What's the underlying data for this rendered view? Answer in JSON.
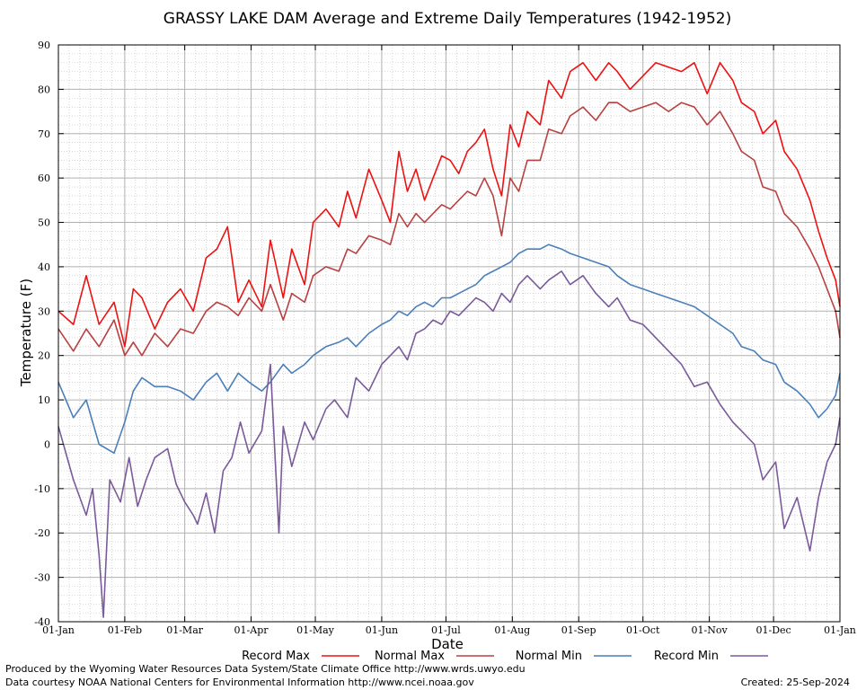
{
  "chart_data": {
    "type": "line",
    "title": "GRASSY LAKE DAM Average and Extreme Daily Temperatures (1942-1952)",
    "xlabel": "Date",
    "ylabel": "Temperature (F)",
    "ylim": [
      -40,
      90
    ],
    "yticks": [
      "90",
      "80",
      "70",
      "60",
      "50",
      "40",
      "30",
      "20",
      "10",
      "0",
      "-10",
      "-20",
      "-30",
      "-40"
    ],
    "xlim": [
      1,
      366
    ],
    "xticks": [
      {
        "day": 1,
        "label": "01-Jan"
      },
      {
        "day": 32,
        "label": "01-Feb"
      },
      {
        "day": 60,
        "label": "01-Mar"
      },
      {
        "day": 91,
        "label": "01-Apr"
      },
      {
        "day": 121,
        "label": "01-May"
      },
      {
        "day": 152,
        "label": "01-Jun"
      },
      {
        "day": 182,
        "label": "01-Jul"
      },
      {
        "day": 213,
        "label": "01-Aug"
      },
      {
        "day": 244,
        "label": "01-Sep"
      },
      {
        "day": 274,
        "label": "01-Oct"
      },
      {
        "day": 305,
        "label": "01-Nov"
      },
      {
        "day": 335,
        "label": "01-Dec"
      },
      {
        "day": 366,
        "label": "01-Jan"
      }
    ],
    "grid": true,
    "legend_position": "bottom",
    "series": [
      {
        "name": "Record Max",
        "color": "#ee1111",
        "points": [
          [
            1,
            30
          ],
          [
            8,
            27
          ],
          [
            14,
            38
          ],
          [
            20,
            27
          ],
          [
            27,
            32
          ],
          [
            32,
            22
          ],
          [
            36,
            35
          ],
          [
            40,
            33
          ],
          [
            46,
            26
          ],
          [
            52,
            32
          ],
          [
            58,
            35
          ],
          [
            64,
            30
          ],
          [
            70,
            42
          ],
          [
            75,
            44
          ],
          [
            80,
            49
          ],
          [
            85,
            32
          ],
          [
            90,
            37
          ],
          [
            96,
            31
          ],
          [
            100,
            46
          ],
          [
            106,
            33
          ],
          [
            110,
            44
          ],
          [
            116,
            36
          ],
          [
            120,
            50
          ],
          [
            126,
            53
          ],
          [
            132,
            49
          ],
          [
            136,
            57
          ],
          [
            140,
            51
          ],
          [
            146,
            62
          ],
          [
            152,
            55
          ],
          [
            156,
            50
          ],
          [
            160,
            66
          ],
          [
            164,
            57
          ],
          [
            168,
            62
          ],
          [
            172,
            55
          ],
          [
            176,
            60
          ],
          [
            180,
            65
          ],
          [
            184,
            64
          ],
          [
            188,
            61
          ],
          [
            192,
            66
          ],
          [
            196,
            68
          ],
          [
            200,
            71
          ],
          [
            204,
            62
          ],
          [
            208,
            56
          ],
          [
            212,
            72
          ],
          [
            216,
            67
          ],
          [
            220,
            75
          ],
          [
            226,
            72
          ],
          [
            230,
            82
          ],
          [
            236,
            78
          ],
          [
            240,
            84
          ],
          [
            246,
            86
          ],
          [
            252,
            82
          ],
          [
            258,
            86
          ],
          [
            262,
            84
          ],
          [
            268,
            80
          ],
          [
            274,
            83
          ],
          [
            280,
            86
          ],
          [
            286,
            85
          ],
          [
            292,
            84
          ],
          [
            298,
            86
          ],
          [
            304,
            79
          ],
          [
            310,
            86
          ],
          [
            316,
            82
          ],
          [
            320,
            77
          ],
          [
            326,
            75
          ],
          [
            330,
            70
          ],
          [
            336,
            73
          ],
          [
            340,
            66
          ],
          [
            346,
            62
          ],
          [
            352,
            55
          ],
          [
            356,
            48
          ],
          [
            360,
            42
          ],
          [
            364,
            37
          ],
          [
            366,
            31
          ]
        ]
      },
      {
        "name": "Normal Max",
        "color": "#b84040",
        "points": [
          [
            1,
            26
          ],
          [
            8,
            21
          ],
          [
            14,
            26
          ],
          [
            20,
            22
          ],
          [
            27,
            28
          ],
          [
            32,
            20
          ],
          [
            36,
            23
          ],
          [
            40,
            20
          ],
          [
            46,
            25
          ],
          [
            52,
            22
          ],
          [
            58,
            26
          ],
          [
            64,
            25
          ],
          [
            70,
            30
          ],
          [
            75,
            32
          ],
          [
            80,
            31
          ],
          [
            85,
            29
          ],
          [
            90,
            33
          ],
          [
            96,
            30
          ],
          [
            100,
            36
          ],
          [
            106,
            28
          ],
          [
            110,
            34
          ],
          [
            116,
            32
          ],
          [
            120,
            38
          ],
          [
            126,
            40
          ],
          [
            132,
            39
          ],
          [
            136,
            44
          ],
          [
            140,
            43
          ],
          [
            146,
            47
          ],
          [
            152,
            46
          ],
          [
            156,
            45
          ],
          [
            160,
            52
          ],
          [
            164,
            49
          ],
          [
            168,
            52
          ],
          [
            172,
            50
          ],
          [
            176,
            52
          ],
          [
            180,
            54
          ],
          [
            184,
            53
          ],
          [
            188,
            55
          ],
          [
            192,
            57
          ],
          [
            196,
            56
          ],
          [
            200,
            60
          ],
          [
            204,
            56
          ],
          [
            208,
            47
          ],
          [
            212,
            60
          ],
          [
            216,
            57
          ],
          [
            220,
            64
          ],
          [
            226,
            64
          ],
          [
            230,
            71
          ],
          [
            236,
            70
          ],
          [
            240,
            74
          ],
          [
            246,
            76
          ],
          [
            252,
            73
          ],
          [
            258,
            77
          ],
          [
            262,
            77
          ],
          [
            268,
            75
          ],
          [
            274,
            76
          ],
          [
            280,
            77
          ],
          [
            286,
            75
          ],
          [
            292,
            77
          ],
          [
            298,
            76
          ],
          [
            304,
            72
          ],
          [
            310,
            75
          ],
          [
            316,
            70
          ],
          [
            320,
            66
          ],
          [
            326,
            64
          ],
          [
            330,
            58
          ],
          [
            336,
            57
          ],
          [
            340,
            52
          ],
          [
            346,
            49
          ],
          [
            352,
            44
          ],
          [
            356,
            40
          ],
          [
            360,
            35
          ],
          [
            364,
            30
          ],
          [
            366,
            24
          ]
        ]
      },
      {
        "name": "Normal Min",
        "color": "#4a7fba",
        "points": [
          [
            1,
            14
          ],
          [
            8,
            6
          ],
          [
            14,
            10
          ],
          [
            20,
            0
          ],
          [
            27,
            -2
          ],
          [
            32,
            5
          ],
          [
            36,
            12
          ],
          [
            40,
            15
          ],
          [
            46,
            13
          ],
          [
            52,
            13
          ],
          [
            58,
            12
          ],
          [
            64,
            10
          ],
          [
            70,
            14
          ],
          [
            75,
            16
          ],
          [
            80,
            12
          ],
          [
            85,
            16
          ],
          [
            90,
            14
          ],
          [
            96,
            12
          ],
          [
            100,
            14
          ],
          [
            106,
            18
          ],
          [
            110,
            16
          ],
          [
            116,
            18
          ],
          [
            120,
            20
          ],
          [
            126,
            22
          ],
          [
            132,
            23
          ],
          [
            136,
            24
          ],
          [
            140,
            22
          ],
          [
            146,
            25
          ],
          [
            152,
            27
          ],
          [
            156,
            28
          ],
          [
            160,
            30
          ],
          [
            164,
            29
          ],
          [
            168,
            31
          ],
          [
            172,
            32
          ],
          [
            176,
            31
          ],
          [
            180,
            33
          ],
          [
            184,
            33
          ],
          [
            188,
            34
          ],
          [
            192,
            35
          ],
          [
            196,
            36
          ],
          [
            200,
            38
          ],
          [
            204,
            39
          ],
          [
            208,
            40
          ],
          [
            212,
            41
          ],
          [
            216,
            43
          ],
          [
            220,
            44
          ],
          [
            226,
            44
          ],
          [
            230,
            45
          ],
          [
            236,
            44
          ],
          [
            240,
            43
          ],
          [
            246,
            42
          ],
          [
            252,
            41
          ],
          [
            258,
            40
          ],
          [
            262,
            38
          ],
          [
            268,
            36
          ],
          [
            274,
            35
          ],
          [
            280,
            34
          ],
          [
            286,
            33
          ],
          [
            292,
            32
          ],
          [
            298,
            31
          ],
          [
            304,
            29
          ],
          [
            310,
            27
          ],
          [
            316,
            25
          ],
          [
            320,
            22
          ],
          [
            326,
            21
          ],
          [
            330,
            19
          ],
          [
            336,
            18
          ],
          [
            340,
            14
          ],
          [
            346,
            12
          ],
          [
            352,
            9
          ],
          [
            356,
            6
          ],
          [
            360,
            8
          ],
          [
            364,
            11
          ],
          [
            366,
            16
          ]
        ]
      },
      {
        "name": "Record Min",
        "color": "#7a5a9a",
        "points": [
          [
            1,
            4
          ],
          [
            8,
            -8
          ],
          [
            14,
            -16
          ],
          [
            17,
            -10
          ],
          [
            20,
            -25
          ],
          [
            22,
            -39
          ],
          [
            25,
            -8
          ],
          [
            30,
            -13
          ],
          [
            34,
            -3
          ],
          [
            38,
            -14
          ],
          [
            42,
            -8
          ],
          [
            46,
            -3
          ],
          [
            52,
            -1
          ],
          [
            56,
            -9
          ],
          [
            60,
            -13
          ],
          [
            64,
            -16
          ],
          [
            66,
            -18
          ],
          [
            70,
            -11
          ],
          [
            74,
            -20
          ],
          [
            78,
            -6
          ],
          [
            82,
            -3
          ],
          [
            86,
            5
          ],
          [
            90,
            -2
          ],
          [
            96,
            3
          ],
          [
            100,
            18
          ],
          [
            104,
            -20
          ],
          [
            106,
            4
          ],
          [
            110,
            -5
          ],
          [
            116,
            5
          ],
          [
            120,
            1
          ],
          [
            126,
            8
          ],
          [
            130,
            10
          ],
          [
            136,
            6
          ],
          [
            140,
            15
          ],
          [
            146,
            12
          ],
          [
            152,
            18
          ],
          [
            156,
            20
          ],
          [
            160,
            22
          ],
          [
            164,
            19
          ],
          [
            168,
            25
          ],
          [
            172,
            26
          ],
          [
            176,
            28
          ],
          [
            180,
            27
          ],
          [
            184,
            30
          ],
          [
            188,
            29
          ],
          [
            192,
            31
          ],
          [
            196,
            33
          ],
          [
            200,
            32
          ],
          [
            204,
            30
          ],
          [
            208,
            34
          ],
          [
            212,
            32
          ],
          [
            216,
            36
          ],
          [
            220,
            38
          ],
          [
            226,
            35
          ],
          [
            230,
            37
          ],
          [
            236,
            39
          ],
          [
            240,
            36
          ],
          [
            246,
            38
          ],
          [
            252,
            34
          ],
          [
            258,
            31
          ],
          [
            262,
            33
          ],
          [
            268,
            28
          ],
          [
            274,
            27
          ],
          [
            280,
            24
          ],
          [
            286,
            21
          ],
          [
            292,
            18
          ],
          [
            298,
            13
          ],
          [
            304,
            14
          ],
          [
            310,
            9
          ],
          [
            316,
            5
          ],
          [
            320,
            3
          ],
          [
            326,
            0
          ],
          [
            330,
            -8
          ],
          [
            336,
            -4
          ],
          [
            340,
            -19
          ],
          [
            346,
            -12
          ],
          [
            352,
            -24
          ],
          [
            356,
            -12
          ],
          [
            360,
            -4
          ],
          [
            364,
            0
          ],
          [
            366,
            6
          ]
        ]
      }
    ]
  },
  "footer": {
    "produced_by": "Produced by the Wyoming Water Resources Data System/State Climate Office http://www.wrds.uwyo.edu",
    "data_courtesy": "Data courtesy NOAA National Centers for Environmental Information http://www.ncei.noaa.gov",
    "created": "Created:  25-Sep-2024"
  },
  "colors": {
    "plot_background": "#ffffff",
    "major_grid": "#b0b0b0",
    "minor_grid": "#bdbdbd"
  }
}
